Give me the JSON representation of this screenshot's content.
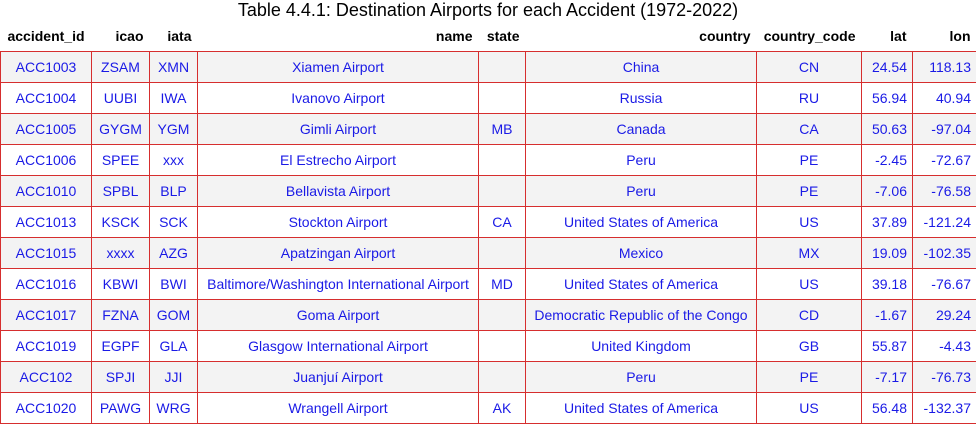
{
  "title": "Table 4.4.1: Destination Airports for each Accident (1972-2022)",
  "columns": [
    "accident_id",
    "icao",
    "iata",
    "name",
    "state",
    "country",
    "country_code",
    "lat",
    "lon"
  ],
  "rows": [
    [
      "ACC1003",
      "ZSAM",
      "XMN",
      "Xiamen Airport",
      "",
      "China",
      "CN",
      "24.54",
      "118.13"
    ],
    [
      "ACC1004",
      "UUBI",
      "IWA",
      "Ivanovo Airport",
      "",
      "Russia",
      "RU",
      "56.94",
      "40.94"
    ],
    [
      "ACC1005",
      "GYGM",
      "YGM",
      "Gimli Airport",
      "MB",
      "Canada",
      "CA",
      "50.63",
      "-97.04"
    ],
    [
      "ACC1006",
      "SPEE",
      "xxx",
      "El Estrecho Airport",
      "",
      "Peru",
      "PE",
      "-2.45",
      "-72.67"
    ],
    [
      "ACC1010",
      "SPBL",
      "BLP",
      "Bellavista Airport",
      "",
      "Peru",
      "PE",
      "-7.06",
      "-76.58"
    ],
    [
      "ACC1013",
      "KSCK",
      "SCK",
      "Stockton Airport",
      "CA",
      "United States of America",
      "US",
      "37.89",
      "-121.24"
    ],
    [
      "ACC1015",
      "xxxx",
      "AZG",
      "Apatzingan Airport",
      "",
      "Mexico",
      "MX",
      "19.09",
      "-102.35"
    ],
    [
      "ACC1016",
      "KBWI",
      "BWI",
      "Baltimore/Washington International Airport",
      "MD",
      "United States of America",
      "US",
      "39.18",
      "-76.67"
    ],
    [
      "ACC1017",
      "FZNA",
      "GOM",
      "Goma Airport",
      "",
      "Democratic Republic of the Congo",
      "CD",
      "-1.67",
      "29.24"
    ],
    [
      "ACC1019",
      "EGPF",
      "GLA",
      "Glasgow International Airport",
      "",
      "United Kingdom",
      "GB",
      "55.87",
      "-4.43"
    ],
    [
      "ACC102",
      "SPJI",
      "JJI",
      "Juanjuí Airport",
      "",
      "Peru",
      "PE",
      "-7.17",
      "-76.73"
    ],
    [
      "ACC1020",
      "PAWG",
      "WRG",
      "Wrangell Airport",
      "AK",
      "United States of America",
      "US",
      "56.48",
      "-132.37"
    ]
  ]
}
